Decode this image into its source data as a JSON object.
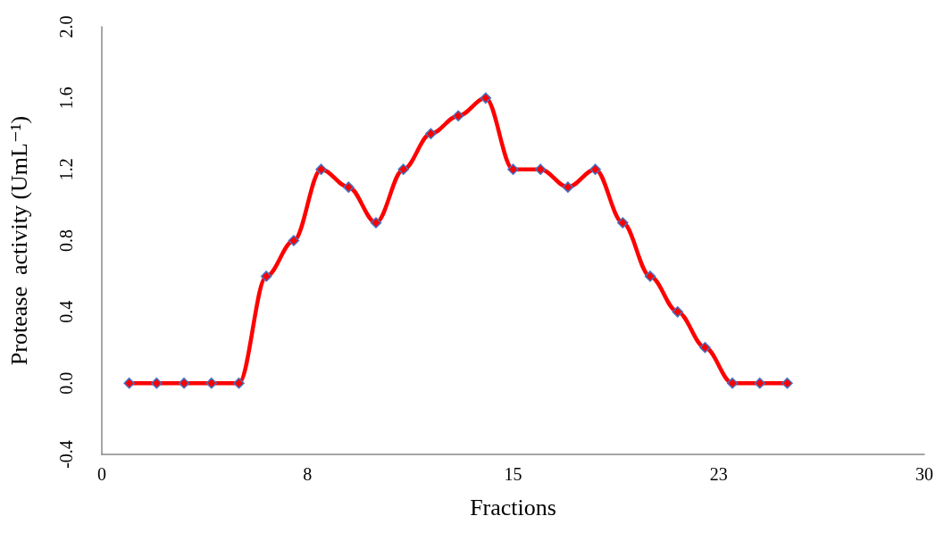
{
  "chart_data": {
    "type": "line",
    "xlabel": "Fractions",
    "ylabel": "Protease  activity (UmL⁻¹)",
    "x": [
      1,
      2,
      3,
      4,
      5,
      6,
      7,
      8,
      9,
      10,
      11,
      12,
      13,
      14,
      15,
      16,
      17,
      18,
      19,
      20,
      21,
      22,
      23,
      24,
      25
    ],
    "series": [
      {
        "color": "#ff0000",
        "values": [
          0,
          0,
          0,
          0,
          0,
          0.6,
          0.8,
          1.2,
          1.1,
          0.9,
          1.2,
          1.4,
          1.5,
          1.6,
          1.2,
          1.2,
          1.1,
          1.2,
          0.9,
          0.6,
          0.4,
          0.2,
          0,
          0,
          0
        ]
      }
    ],
    "xlim": [
      0,
      30
    ],
    "xticks": [
      0,
      {
        "value": 7.5,
        "label": "8"
      },
      15,
      {
        "value": 22.5,
        "label": "23"
      },
      30
    ],
    "ylim": [
      -0.4,
      2.0
    ],
    "yticks": [
      {
        "value": -0.4,
        "label": "-0.4"
      },
      {
        "value": 0,
        "label": "0.0"
      },
      {
        "value": 0.4,
        "label": "0.4"
      },
      {
        "value": 0.8,
        "label": "0.8"
      },
      {
        "value": 1.2,
        "label": "1.2"
      },
      {
        "value": 1.6,
        "label": "1.6"
      },
      {
        "value": 2.0,
        "label": "2.0"
      }
    ],
    "marker": "diamond",
    "line_style": "solid"
  }
}
